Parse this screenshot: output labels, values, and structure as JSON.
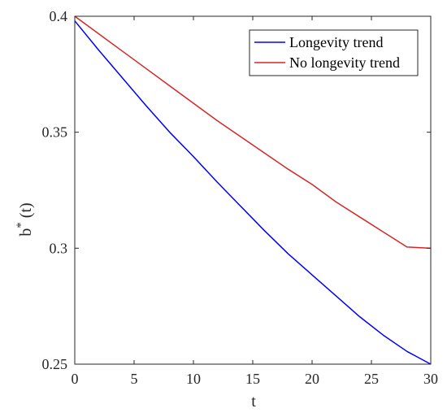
{
  "chart_data": {
    "type": "line",
    "title": "",
    "xlabel": "t",
    "ylabel": {
      "base": "b",
      "superscript": "*",
      "suffix": " (t)"
    },
    "xlim": [
      0,
      30
    ],
    "ylim": [
      0.25,
      0.4
    ],
    "grid": false,
    "legend_position": "top-right",
    "x_ticks": [
      0,
      5,
      10,
      15,
      20,
      25,
      30
    ],
    "x_tick_labels": [
      "0",
      "5",
      "10",
      "15",
      "20",
      "25",
      "30"
    ],
    "y_ticks": [
      0.25,
      0.3,
      0.35,
      0.4
    ],
    "y_tick_labels": [
      "0.25",
      "0.3",
      "0.35",
      "0.4"
    ],
    "x": [
      0,
      2,
      4,
      6,
      8,
      10,
      12,
      14,
      16,
      18,
      20,
      22,
      24,
      26,
      28,
      30
    ],
    "series": [
      {
        "name": "Longevity trend",
        "color": "#0000ff",
        "values": [
          0.398,
          0.3855,
          0.3735,
          0.3615,
          0.35,
          0.3395,
          0.3285,
          0.318,
          0.3075,
          0.2975,
          0.2885,
          0.2795,
          0.2705,
          0.2625,
          0.2555,
          0.25
        ]
      },
      {
        "name": "No longevity trend",
        "color": "#d62728",
        "values": [
          0.4,
          0.3925,
          0.385,
          0.3775,
          0.37,
          0.3625,
          0.355,
          0.348,
          0.341,
          0.334,
          0.3275,
          0.32,
          0.3135,
          0.307,
          0.3005,
          0.3
        ]
      }
    ]
  }
}
